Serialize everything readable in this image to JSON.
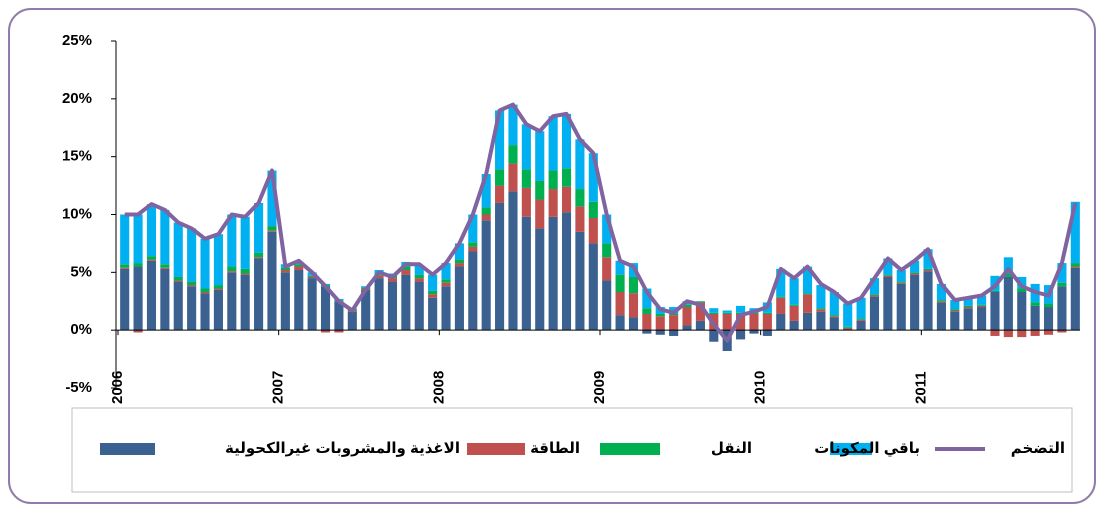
{
  "chart_data": {
    "type": "stacked-bar-line",
    "categories": [
      "2006",
      null,
      null,
      null,
      null,
      null,
      null,
      null,
      null,
      null,
      null,
      null,
      "2007",
      null,
      null,
      null,
      null,
      null,
      null,
      null,
      null,
      null,
      null,
      null,
      "2008",
      null,
      null,
      null,
      null,
      null,
      null,
      null,
      null,
      null,
      null,
      null,
      "2009",
      null,
      null,
      null,
      null,
      null,
      null,
      null,
      null,
      null,
      null,
      null,
      "2010",
      null,
      null,
      null,
      null,
      null,
      null,
      null,
      null,
      null,
      null,
      null,
      "2011",
      null,
      null,
      null,
      null,
      null,
      null,
      null,
      null,
      null,
      null,
      null
    ],
    "series": [
      {
        "name": "الاغذية والمشروبات غيرالكحولية",
        "color": "#3b6190",
        "kind": "bar",
        "values": [
          5.3,
          5.5,
          6.0,
          5.3,
          4.2,
          3.8,
          3.2,
          3.5,
          5.0,
          4.8,
          6.2,
          8.5,
          5.0,
          5.2,
          4.5,
          3.8,
          2.5,
          1.6,
          3.5,
          4.5,
          4.2,
          4.8,
          4.2,
          2.8,
          3.8,
          5.5,
          6.8,
          9.5,
          11.0,
          12.0,
          9.8,
          8.8,
          9.8,
          10.2,
          8.5,
          7.5,
          4.3,
          1.3,
          1.1,
          -0.3,
          -0.4,
          -0.5,
          0.4,
          0.8,
          -1.0,
          -1.8,
          -0.8,
          -0.3,
          -0.5,
          1.4,
          0.8,
          1.5,
          1.6,
          1.1,
          0.1,
          0.8,
          2.9,
          4.6,
          4.0,
          4.8,
          5.1,
          2.4,
          1.6,
          1.9,
          2.0,
          3.3,
          4.6,
          3.3,
          2.1,
          2.0,
          3.8,
          5.4
        ]
      },
      {
        "name": "الطاقة",
        "color": "#c0504d",
        "kind": "bar",
        "values": [
          0.1,
          -0.2,
          0.1,
          0.1,
          0.1,
          0.1,
          0.1,
          0.1,
          0.1,
          0.1,
          0.1,
          0.1,
          0.2,
          0.3,
          0.1,
          -0.2,
          -0.2,
          0.1,
          0.1,
          0.2,
          0.3,
          0.4,
          0.3,
          0.3,
          0.3,
          0.3,
          0.4,
          0.5,
          1.5,
          2.4,
          2.5,
          2.5,
          2.4,
          2.2,
          2.2,
          2.2,
          2.0,
          2.0,
          2.1,
          1.4,
          1.2,
          1.3,
          1.6,
          1.6,
          1.4,
          1.4,
          1.4,
          1.4,
          1.4,
          1.4,
          1.3,
          1.6,
          0.2,
          0.1,
          0.1,
          0.1,
          0.1,
          0.1,
          0.1,
          0.1,
          0.1,
          0.1,
          0.1,
          0.1,
          0.1,
          -0.5,
          -0.6,
          -0.6,
          -0.5,
          -0.4,
          -0.2,
          0.1
        ]
      },
      {
        "name": "النقل",
        "color": "#00b050",
        "kind": "bar",
        "values": [
          0.3,
          0.3,
          0.3,
          0.3,
          0.3,
          0.3,
          0.3,
          0.3,
          0.4,
          0.4,
          0.4,
          0.4,
          0.2,
          0.2,
          0.1,
          0.1,
          0.1,
          0.1,
          0.1,
          0.2,
          0.2,
          0.3,
          0.3,
          0.3,
          0.3,
          0.3,
          0.4,
          0.6,
          1.4,
          1.6,
          1.6,
          1.6,
          1.6,
          1.6,
          1.5,
          1.4,
          1.2,
          1.5,
          1.4,
          0.5,
          0.2,
          0.1,
          0.2,
          0.1,
          0.1,
          0.1,
          0.1,
          0.1,
          0.1,
          0.1,
          0.1,
          0.1,
          0.1,
          0.1,
          0.1,
          0.1,
          0.1,
          0.1,
          0.1,
          0.1,
          0.1,
          0.1,
          0.1,
          0.1,
          0.1,
          0.1,
          0.3,
          0.3,
          0.3,
          0.3,
          0.3,
          0.3
        ]
      },
      {
        "name": "باقي المكونات",
        "color": "#00b0f0",
        "kind": "bar",
        "values": [
          4.3,
          4.2,
          4.5,
          4.7,
          4.7,
          4.6,
          4.3,
          4.4,
          4.5,
          4.5,
          4.3,
          4.8,
          0.3,
          0.2,
          0.3,
          0.1,
          0.1,
          0.1,
          0.1,
          0.3,
          0.2,
          0.4,
          0.8,
          1.4,
          1.4,
          1.4,
          2.4,
          2.9,
          5.1,
          3.5,
          3.9,
          4.3,
          4.7,
          4.7,
          4.3,
          4.2,
          2.5,
          1.2,
          1.2,
          1.7,
          0.6,
          0.6,
          0.3,
          0.0,
          0.4,
          0.2,
          0.6,
          0.4,
          0.9,
          2.4,
          2.3,
          2.3,
          2.0,
          2.0,
          2.0,
          1.8,
          1.4,
          1.4,
          1.0,
          1.0,
          1.7,
          1.4,
          0.8,
          0.8,
          0.8,
          1.3,
          1.4,
          1.0,
          1.6,
          1.6,
          1.7,
          5.3
        ]
      },
      {
        "name": "التضخم",
        "color": "#8064a2",
        "kind": "line",
        "values": [
          10.0,
          10.0,
          10.9,
          10.4,
          9.3,
          8.8,
          7.9,
          8.3,
          10.0,
          9.8,
          11.0,
          13.8,
          5.5,
          6.0,
          5.0,
          3.8,
          2.5,
          1.7,
          3.5,
          5.0,
          4.6,
          5.7,
          5.7,
          4.8,
          5.8,
          7.5,
          10.0,
          13.5,
          19.0,
          19.5,
          17.8,
          17.2,
          18.5,
          18.7,
          16.5,
          15.3,
          10.0,
          6.0,
          5.5,
          3.3,
          1.8,
          1.5,
          2.5,
          2.2,
          0.5,
          -0.9,
          1.3,
          1.6,
          2.0,
          5.3,
          4.5,
          5.5,
          4.0,
          3.3,
          2.3,
          2.8,
          4.5,
          6.2,
          5.2,
          6.0,
          7.0,
          4.0,
          2.6,
          2.8,
          3.0,
          3.8,
          5.3,
          3.8,
          3.3,
          3.0,
          5.8,
          11.0
        ]
      }
    ],
    "ylim": [
      -5,
      25
    ],
    "yticks": [
      {
        "value": -5,
        "label": "-5%"
      },
      {
        "value": 0,
        "label": "0%"
      },
      {
        "value": 5,
        "label": "5%"
      },
      {
        "value": 10,
        "label": "10%"
      },
      {
        "value": 15,
        "label": "15%"
      },
      {
        "value": 20,
        "label": "20%"
      },
      {
        "value": 25,
        "label": "25%"
      }
    ],
    "grid": false,
    "legend": "bottom"
  }
}
